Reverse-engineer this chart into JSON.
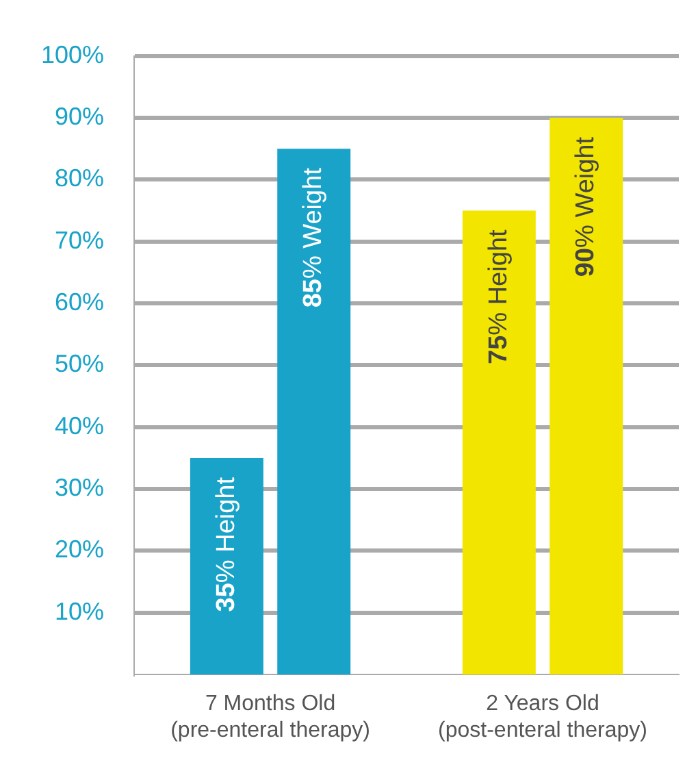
{
  "chart_data": {
    "type": "bar",
    "categories": [
      [
        "7 Months Old",
        "(pre-enteral therapy)"
      ],
      [
        "2 Years Old",
        "(post-enteral therapy)"
      ]
    ],
    "series": [
      {
        "colors": [
          "#1aa3c8",
          "#f2e600"
        ],
        "values": [
          35,
          75
        ],
        "value_labels": [
          "35% Height",
          "75% Height"
        ]
      },
      {
        "colors": [
          "#1aa3c8",
          "#f2e600"
        ],
        "values": [
          85,
          90
        ],
        "value_labels": [
          "85% Weight",
          "90% Weight"
        ]
      }
    ],
    "ylim": [
      0,
      100
    ],
    "yticks": [
      {
        "value": 10,
        "label": "10%"
      },
      {
        "value": 20,
        "label": "20%"
      },
      {
        "value": 30,
        "label": "30%"
      },
      {
        "value": 40,
        "label": "40%"
      },
      {
        "value": 50,
        "label": "50%"
      },
      {
        "value": 60,
        "label": "60%"
      },
      {
        "value": 70,
        "label": "70%"
      },
      {
        "value": 80,
        "label": "80%"
      },
      {
        "value": 90,
        "label": "90%"
      },
      {
        "value": 100,
        "label": "100%"
      }
    ],
    "grid": "y",
    "legend": false
  }
}
